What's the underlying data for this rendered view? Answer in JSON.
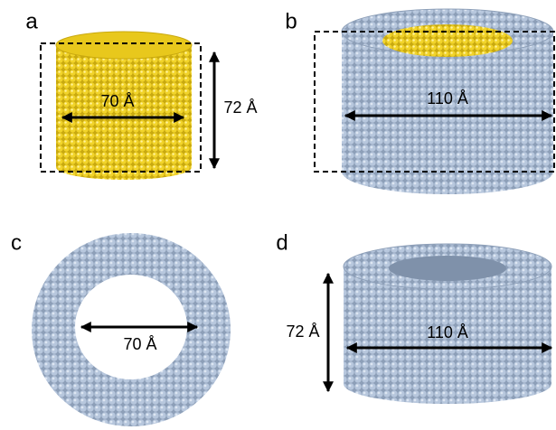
{
  "panels": [
    {
      "label": "a",
      "width_label": "70 Å",
      "height_label": "72 Å"
    },
    {
      "label": "b",
      "width_label": "110 Å"
    },
    {
      "label": "c",
      "width_label": "70 Å"
    },
    {
      "label": "d",
      "width_label": "110 Å",
      "height_label": "72 Å"
    }
  ]
}
